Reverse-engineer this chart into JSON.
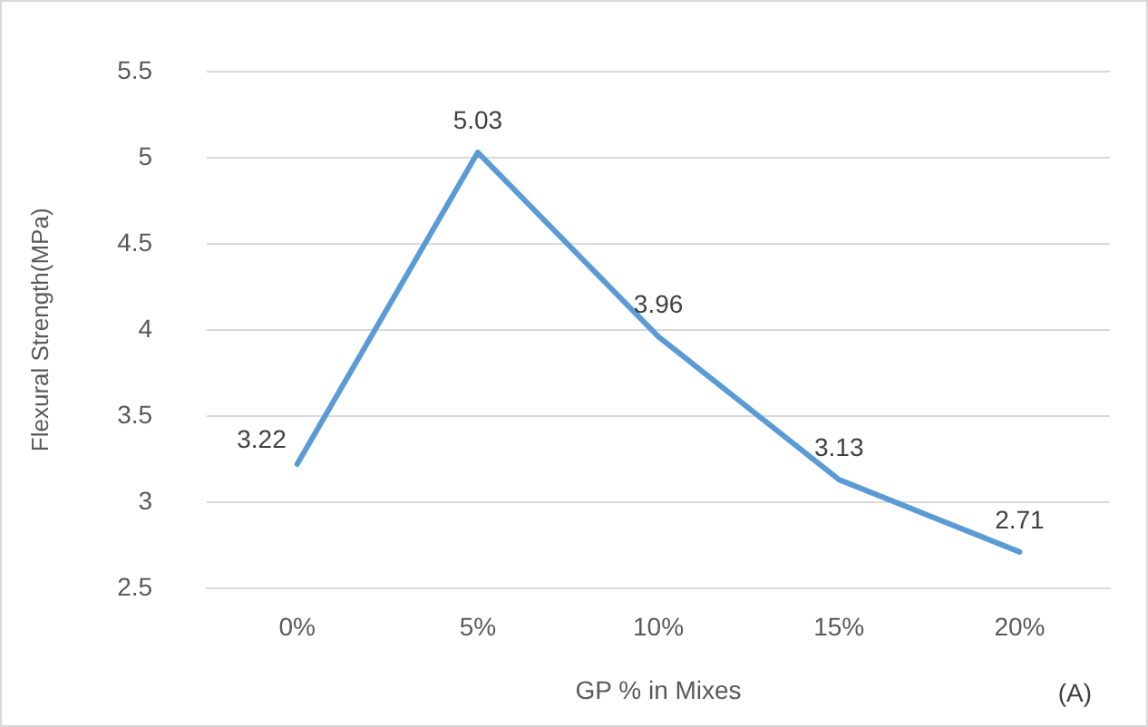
{
  "chart_data": {
    "type": "line",
    "xlabel": "GP % in Mixes",
    "ylabel": "Flexural Strength(MPa)",
    "categories": [
      "0%",
      "5%",
      "10%",
      "15%",
      "20%"
    ],
    "series": [
      {
        "color": "#5b9bd5",
        "values": [
          3.22,
          5.03,
          3.96,
          3.13,
          2.71
        ]
      }
    ],
    "ylim": [
      2.5,
      5.5
    ],
    "yticks": [
      2.5,
      3,
      3.5,
      4,
      4.5,
      5,
      5.5
    ],
    "grid": "y",
    "legend": false,
    "marker": "none",
    "line_style": "solid",
    "data_labels": true,
    "annotations": [
      "(A)"
    ]
  }
}
